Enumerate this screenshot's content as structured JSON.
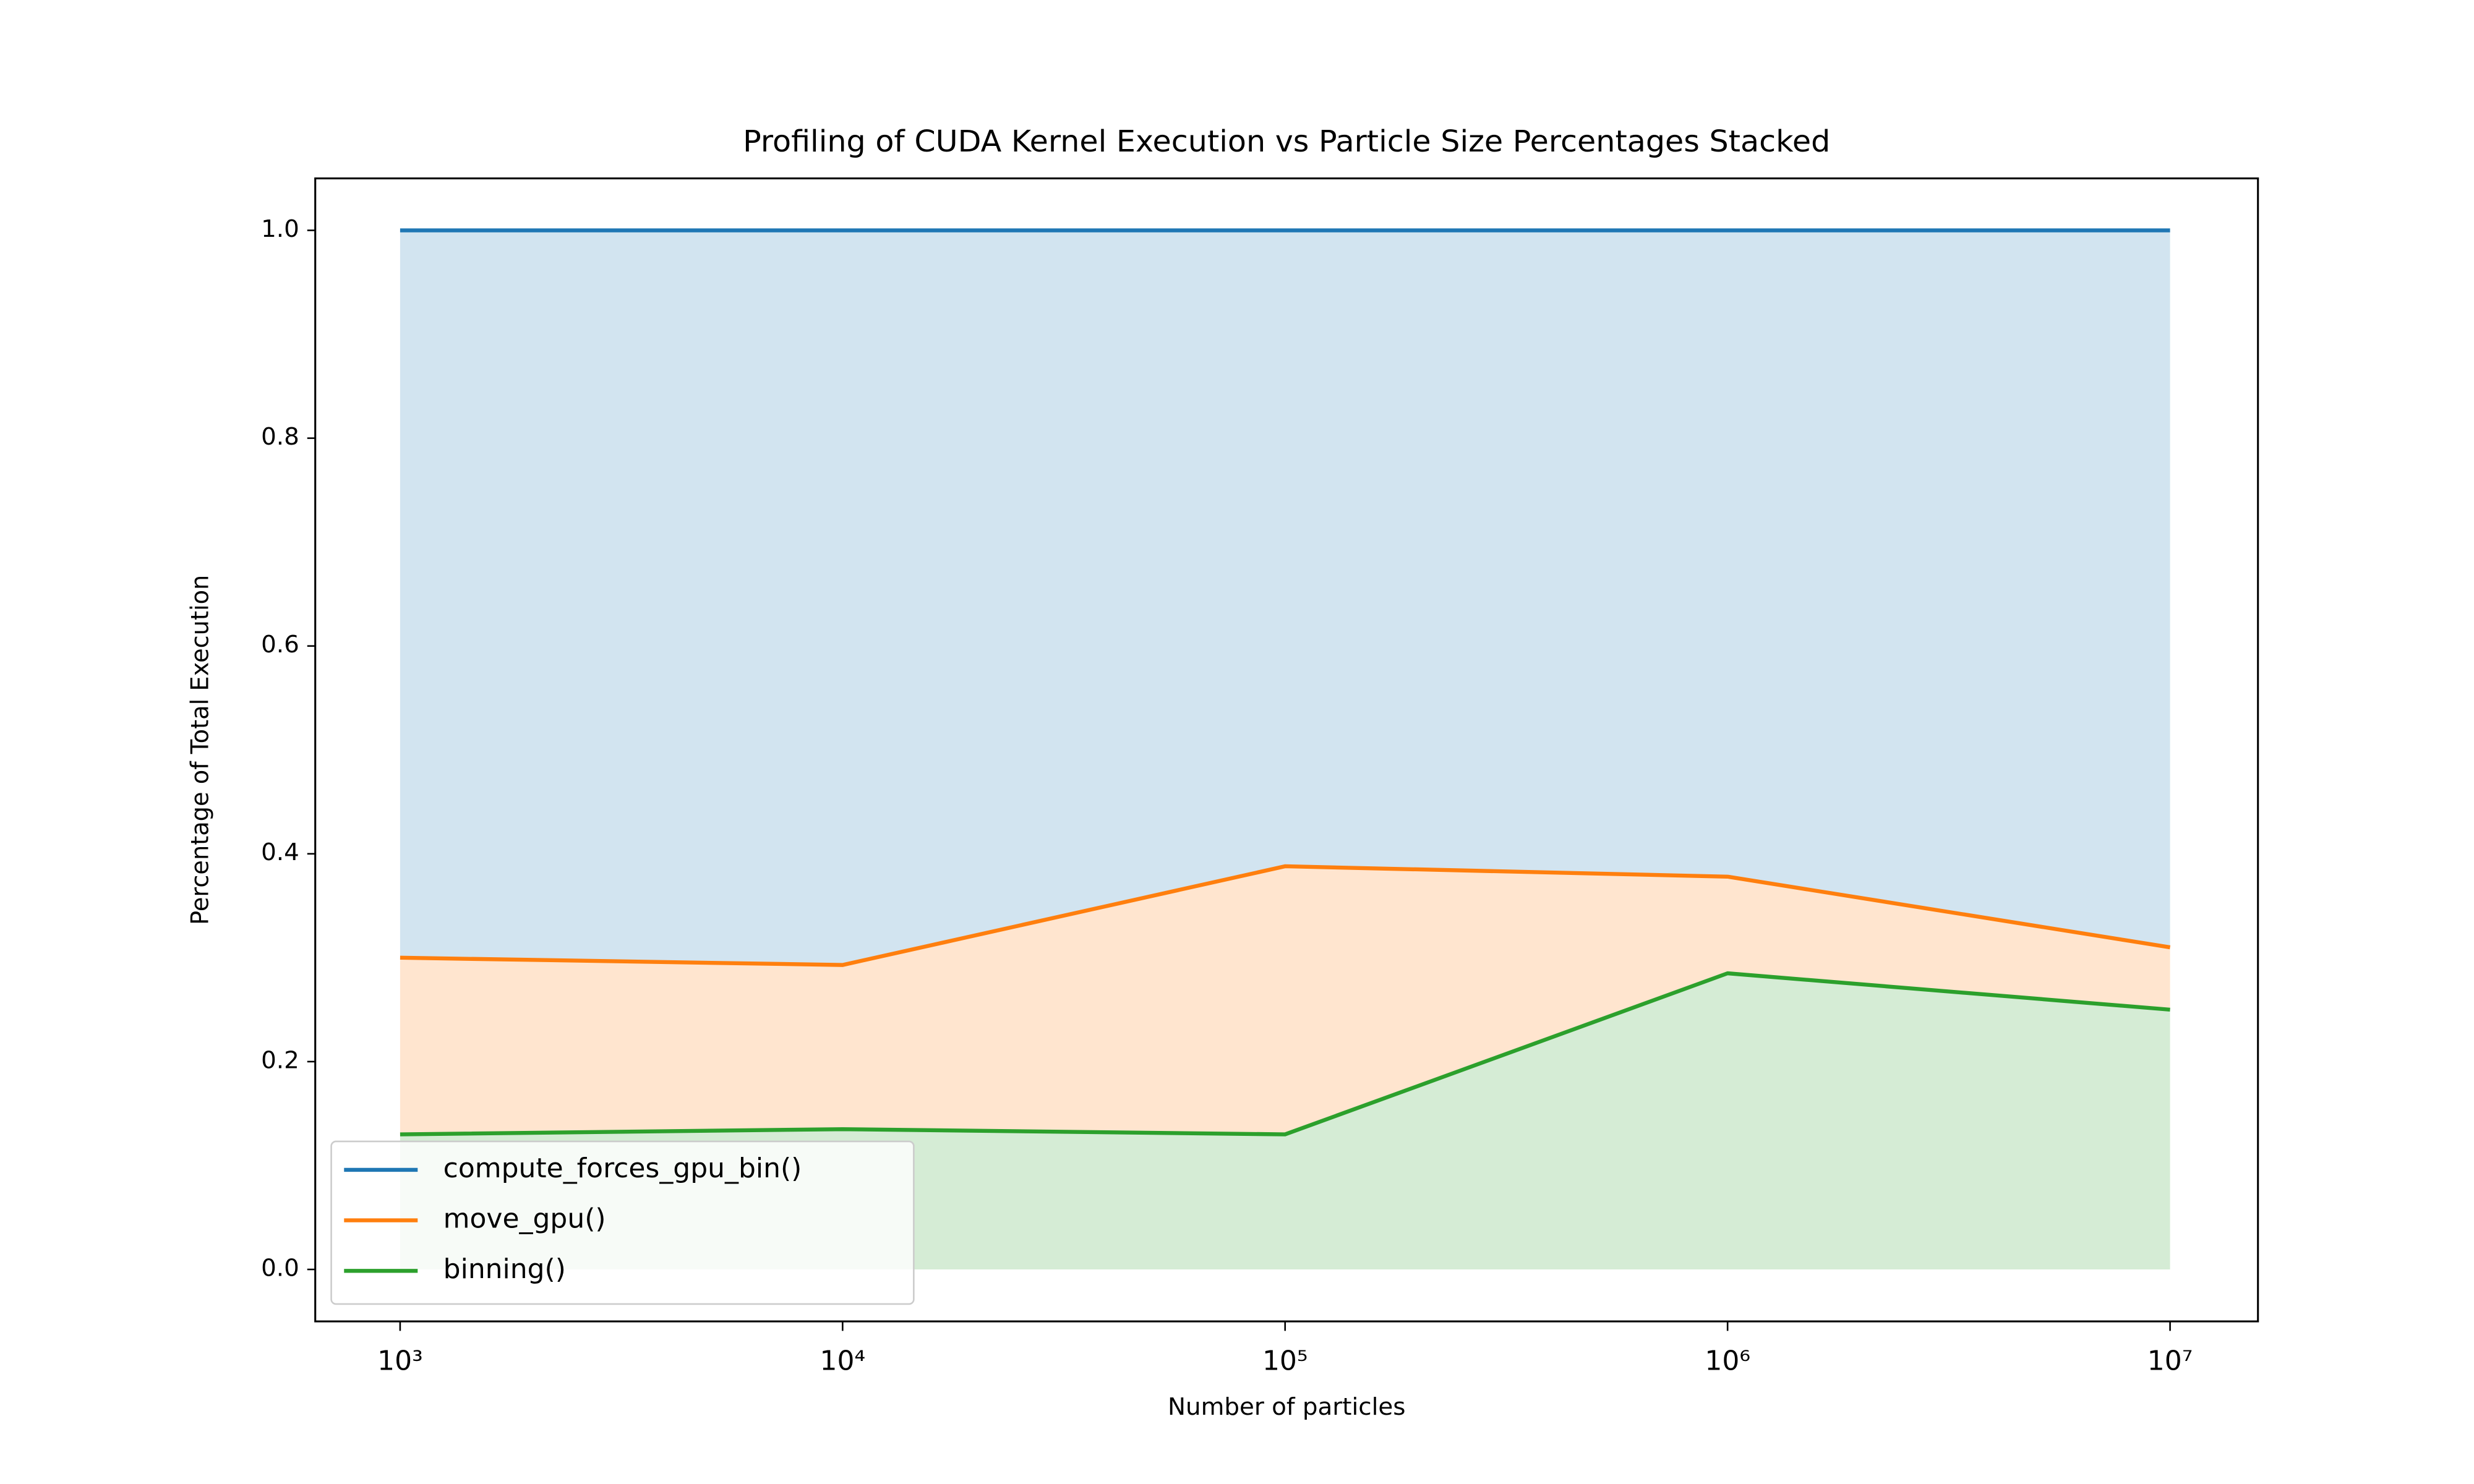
{
  "chart_data": {
    "type": "stacked-area",
    "title": "Profiling of CUDA Kernel Execution vs Particle Size Percentages Stacked",
    "xlabel": "Number of particles",
    "ylabel": "Percentage of Total Execution",
    "x": [
      1000,
      10000,
      100000,
      1000000,
      10000000
    ],
    "xscale": "log",
    "xlim": [
      643,
      15800000
    ],
    "xticks": [
      {
        "value": 1000,
        "label": "10³"
      },
      {
        "value": 10000,
        "label": "10⁴"
      },
      {
        "value": 100000,
        "label": "10⁵"
      },
      {
        "value": 1000000,
        "label": "10⁶"
      },
      {
        "value": 10000000,
        "label": "10⁷"
      }
    ],
    "ylim": [
      -0.05,
      1.05
    ],
    "yticks": [
      {
        "value": 0,
        "label": "0.0"
      },
      0.2,
      0.4,
      0.6,
      0.8,
      {
        "value": 1,
        "label": "1.0"
      }
    ],
    "legend": "lower left",
    "series": [
      {
        "name": "compute_forces_gpu_bin()",
        "color": "#1f77b4",
        "values": [
          0.7,
          0.707,
          0.612,
          0.622,
          0.69
        ]
      },
      {
        "name": "move_gpu()",
        "color": "#ff7f0e",
        "values": [
          0.17,
          0.158,
          0.258,
          0.093,
          0.06
        ]
      },
      {
        "name": "binning()",
        "color": "#2ca02c",
        "values": [
          0.13,
          0.135,
          0.13,
          0.285,
          0.25
        ]
      }
    ]
  }
}
